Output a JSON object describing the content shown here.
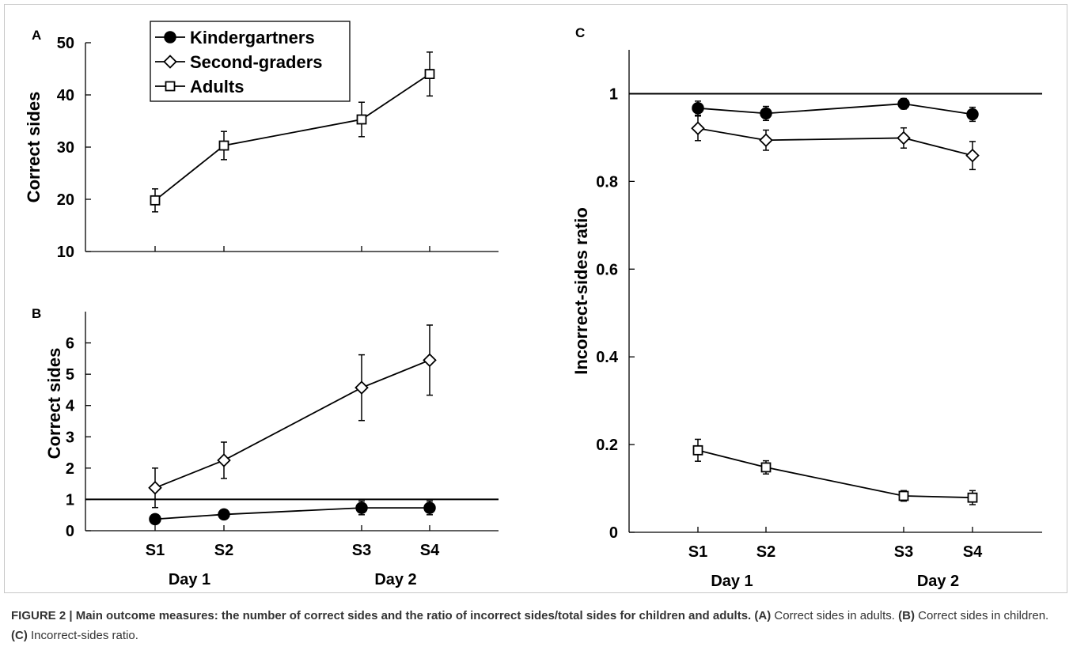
{
  "chart_data": [
    {
      "panel": "A",
      "type": "line",
      "ylabel": "Correct sides",
      "ylim": [
        10,
        50
      ],
      "yticks": [
        10,
        20,
        30,
        40,
        50
      ],
      "x": [
        1,
        2,
        4,
        5
      ],
      "xticklabels": [],
      "legend": {
        "placement": "top-left",
        "entries": [
          "Kindergartners",
          "Second-graders",
          "Adults"
        ]
      },
      "series": [
        {
          "name": "Adults",
          "marker": "square",
          "values": [
            19.8,
            30.3,
            35.3,
            44.0
          ],
          "errors": [
            2.2,
            2.7,
            3.3,
            4.2
          ]
        }
      ]
    },
    {
      "panel": "B",
      "type": "line",
      "ylabel": "Correct sides",
      "ylim": [
        0,
        7
      ],
      "yticks": [
        0,
        1,
        2,
        3,
        4,
        5,
        6
      ],
      "x": [
        1,
        2,
        4,
        5
      ],
      "xticklabels": [
        "S1",
        "S2",
        "S3",
        "S4"
      ],
      "day_labels": [
        "Day 1",
        "Day 2"
      ],
      "reference_line": 1,
      "series": [
        {
          "name": "Second-graders",
          "marker": "diamond",
          "values": [
            1.37,
            2.25,
            4.57,
            5.45
          ],
          "errors": [
            0.63,
            0.58,
            1.05,
            1.12
          ]
        },
        {
          "name": "Kindergartners",
          "marker": "circle",
          "values": [
            0.37,
            0.52,
            0.73,
            0.73
          ],
          "errors": [
            0.08,
            0.08,
            0.22,
            0.22
          ]
        }
      ]
    },
    {
      "panel": "C",
      "type": "line",
      "ylabel": "Incorrect-sides ratio",
      "ylim": [
        0,
        1.1
      ],
      "yticks": [
        0,
        0.2,
        0.4,
        0.6,
        0.8,
        1
      ],
      "ytick_labels": [
        "0",
        "0.2",
        "0.4",
        "0.6",
        "0.8",
        "1"
      ],
      "x": [
        1,
        2,
        4,
        5
      ],
      "xticklabels": [
        "S1",
        "S2",
        "S3",
        "S4"
      ],
      "day_labels": [
        "Day 1",
        "Day 2"
      ],
      "reference_line": 1,
      "series": [
        {
          "name": "Kindergartners",
          "marker": "circle",
          "values": [
            0.967,
            0.955,
            0.977,
            0.953
          ],
          "errors": [
            0.016,
            0.016,
            0.012,
            0.016
          ]
        },
        {
          "name": "Second-graders",
          "marker": "diamond",
          "values": [
            0.921,
            0.894,
            0.899,
            0.859
          ],
          "errors": [
            0.028,
            0.023,
            0.023,
            0.032
          ]
        },
        {
          "name": "Adults",
          "marker": "square",
          "values": [
            0.187,
            0.148,
            0.083,
            0.079
          ],
          "errors": [
            0.025,
            0.015,
            0.012,
            0.016
          ]
        }
      ]
    }
  ],
  "caption": {
    "figure_label": "FIGURE 2 | Main outcome measures: the number of correct sides and the ratio of incorrect sides/total sides for children and adults.",
    "a_label": "(A)",
    "a_text": " Correct sides in adults. ",
    "b_label": "(B)",
    "b_text": " Correct sides in children. ",
    "c_label": "(C)",
    "c_text": " Incorrect-sides ratio."
  },
  "colors": {
    "ink": "#000000",
    "caption_text": "#333333",
    "frame": "#c8c8c8"
  }
}
